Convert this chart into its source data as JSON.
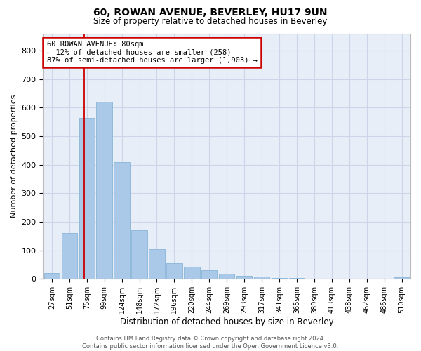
{
  "title1": "60, ROWAN AVENUE, BEVERLEY, HU17 9UN",
  "title2": "Size of property relative to detached houses in Beverley",
  "xlabel": "Distribution of detached houses by size in Beverley",
  "ylabel": "Number of detached properties",
  "footer1": "Contains HM Land Registry data © Crown copyright and database right 2024.",
  "footer2": "Contains public sector information licensed under the Open Government Licence v3.0.",
  "bar_labels": [
    "27sqm",
    "51sqm",
    "75sqm",
    "99sqm",
    "124sqm",
    "148sqm",
    "172sqm",
    "196sqm",
    "220sqm",
    "244sqm",
    "269sqm",
    "293sqm",
    "317sqm",
    "341sqm",
    "365sqm",
    "389sqm",
    "413sqm",
    "438sqm",
    "462sqm",
    "486sqm",
    "510sqm"
  ],
  "bar_values": [
    20,
    160,
    565,
    620,
    410,
    170,
    105,
    55,
    42,
    30,
    17,
    10,
    9,
    4,
    4,
    1,
    0,
    0,
    0,
    0,
    6
  ],
  "bar_color": "#aac9e8",
  "bar_edge_color": "#88b4d8",
  "grid_color": "#ccd6e8",
  "bg_color": "#e8eef8",
  "red_line_x": 1.85,
  "annotation_text": "60 ROWAN AVENUE: 80sqm\n← 12% of detached houses are smaller (258)\n87% of semi-detached houses are larger (1,903) →",
  "annotation_box_color": "#cc0000",
  "ylim": [
    0,
    860
  ],
  "yticks": [
    0,
    100,
    200,
    300,
    400,
    500,
    600,
    700,
    800
  ]
}
